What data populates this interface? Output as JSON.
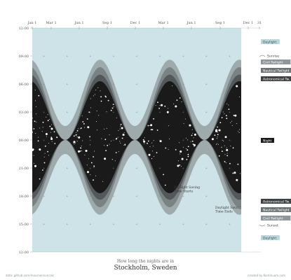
{
  "chart_data": {
    "type": "area",
    "subtitle": "How long the nights are in",
    "title": "Stockholm, Sweden",
    "source": "data: github.com/mourner/suncalc",
    "credit": "created by Kontinuum.com",
    "x_ticks": [
      "Jan 1",
      "Mar 1",
      "Jun 1",
      "Sep 1",
      "Dec 1",
      "Mar 1",
      "Jun 1",
      "Sep 1",
      "Dec 1",
      "31"
    ],
    "y_ticks": [
      "12:00",
      "09:00",
      "06:00",
      "03:00",
      "00:00",
      "21:00",
      "18:00",
      "15:00",
      "12:00"
    ],
    "ylim_hours": [
      12,
      36
    ],
    "legend_top": [
      "Daylight",
      "Sunrise",
      "Civil Twilight",
      "Nautical Twilight",
      "Astronomical Tw."
    ],
    "legend_middle": "Night",
    "legend_bottom": [
      "Astronomical Tw.",
      "Nautical Twilight",
      "Civil Twilight",
      "Sunset",
      "Daylight"
    ],
    "annotations": [
      "Daylight Saving Time Starts",
      "Daylight Saving Time Ends"
    ],
    "series_hours": [
      {
        "name": "Civil Twilight",
        "winter": [
          15.4,
          32.0
        ],
        "summer": [
          22.5,
          25.5
        ]
      },
      {
        "name": "Nautical Twilight",
        "winter": [
          16.2,
          31.2
        ],
        "summer": [
          24.0,
          24.0
        ]
      },
      {
        "name": "Astronomical Tw.",
        "winter": [
          17.0,
          30.4
        ],
        "summer": [
          24.0,
          24.0
        ]
      },
      {
        "name": "Night",
        "winter": [
          17.7,
          29.7
        ],
        "summer": [
          24.0,
          24.0
        ]
      }
    ],
    "colors": {
      "background": "#cde3e7",
      "civil": "#9aa3a5",
      "nautical": "#767e80",
      "astronomical": "#4f5456",
      "night": "#1a1a1a",
      "stars": "#ffffff"
    }
  }
}
